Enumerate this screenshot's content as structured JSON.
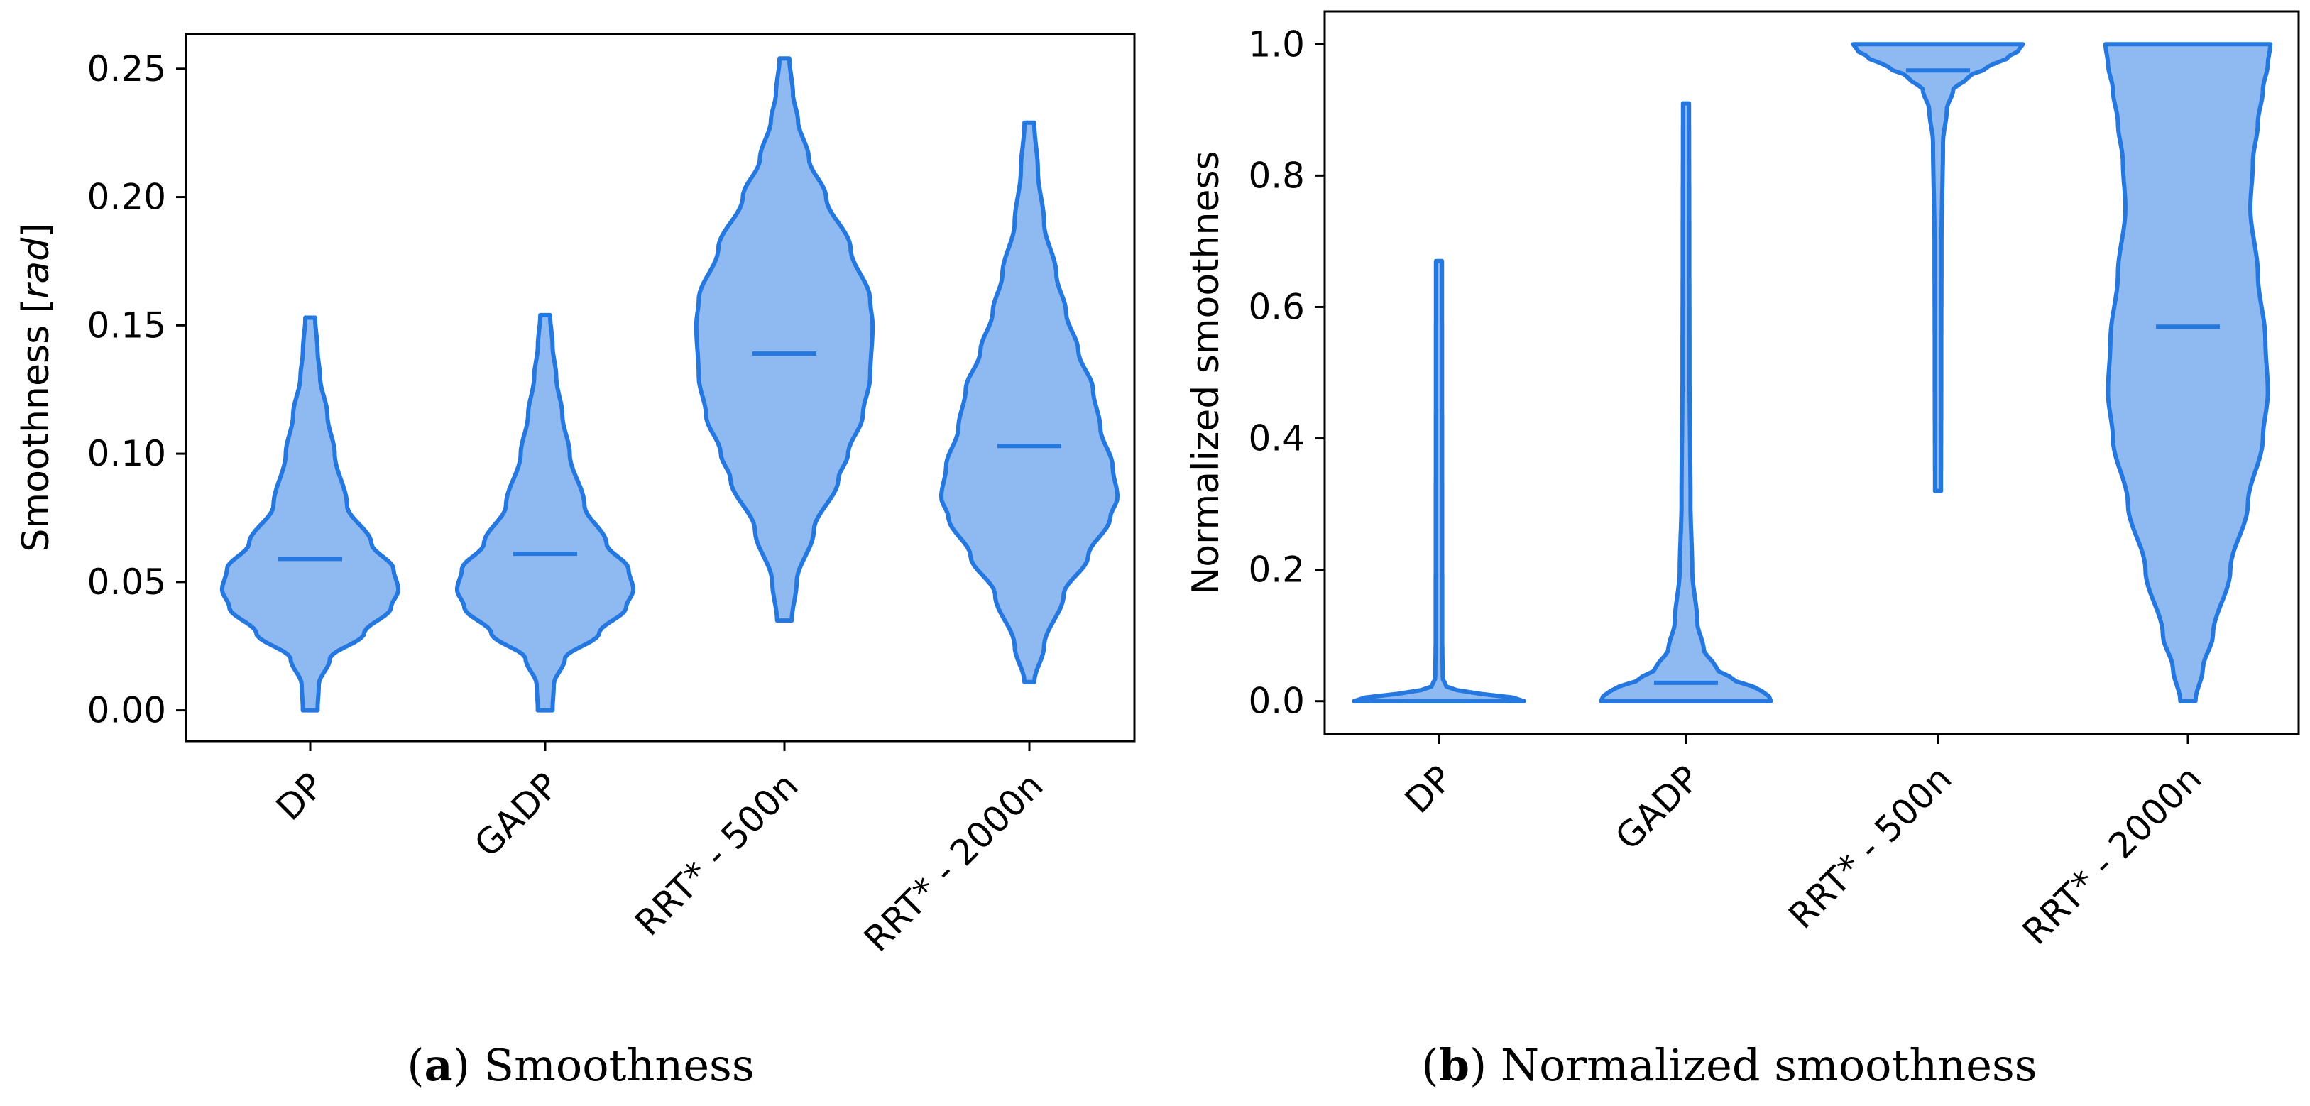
{
  "colors": {
    "fill": "#8fbaf1",
    "stroke": "#2478e0",
    "axis": "#000000"
  },
  "chart_data": [
    {
      "type": "violin",
      "panel_label": "a",
      "caption": "Smoothness",
      "ylabel_prefix": "Smoothness [",
      "ylabel_unit": "rad",
      "ylabel_suffix": "]",
      "ylim": [
        -0.012,
        0.2635
      ],
      "yticks": [
        0.0,
        0.05,
        0.1,
        0.15,
        0.2,
        0.25
      ],
      "ytick_labels": [
        "0.00",
        "0.05",
        "0.10",
        "0.15",
        "0.20",
        "0.25"
      ],
      "categories": [
        "DP",
        "GADP",
        "RRT* - 500n",
        "RRT* - 2000n"
      ],
      "grid": false,
      "series": [
        {
          "category": "DP",
          "min": 0.0,
          "max": 0.153,
          "median": 0.059,
          "max_half_width": 0.36,
          "profile": [
            [
              0.0,
              0.03
            ],
            [
              0.01,
              0.035
            ],
            [
              0.02,
              0.08
            ],
            [
              0.03,
              0.22
            ],
            [
              0.04,
              0.33
            ],
            [
              0.047,
              0.36
            ],
            [
              0.055,
              0.34
            ],
            [
              0.065,
              0.25
            ],
            [
              0.08,
              0.15
            ],
            [
              0.1,
              0.1
            ],
            [
              0.115,
              0.07
            ],
            [
              0.13,
              0.04
            ],
            [
              0.14,
              0.03
            ],
            [
              0.153,
              0.02
            ]
          ]
        },
        {
          "category": "GADP",
          "min": 0.0,
          "max": 0.154,
          "median": 0.061,
          "max_half_width": 0.36,
          "profile": [
            [
              0.0,
              0.03
            ],
            [
              0.01,
              0.035
            ],
            [
              0.02,
              0.08
            ],
            [
              0.03,
              0.22
            ],
            [
              0.04,
              0.33
            ],
            [
              0.047,
              0.36
            ],
            [
              0.055,
              0.34
            ],
            [
              0.065,
              0.25
            ],
            [
              0.08,
              0.16
            ],
            [
              0.1,
              0.1
            ],
            [
              0.115,
              0.07
            ],
            [
              0.13,
              0.045
            ],
            [
              0.142,
              0.03
            ],
            [
              0.154,
              0.02
            ]
          ]
        },
        {
          "category": "RRT* - 500n",
          "min": 0.035,
          "max": 0.254,
          "median": 0.139,
          "max_half_width": 0.36,
          "profile": [
            [
              0.035,
              0.03
            ],
            [
              0.05,
              0.05
            ],
            [
              0.07,
              0.12
            ],
            [
              0.09,
              0.22
            ],
            [
              0.1,
              0.26
            ],
            [
              0.115,
              0.32
            ],
            [
              0.13,
              0.35
            ],
            [
              0.15,
              0.36
            ],
            [
              0.16,
              0.35
            ],
            [
              0.18,
              0.27
            ],
            [
              0.2,
              0.17
            ],
            [
              0.215,
              0.1
            ],
            [
              0.23,
              0.055
            ],
            [
              0.24,
              0.035
            ],
            [
              0.254,
              0.02
            ]
          ]
        },
        {
          "category": "RRT* - 2000n",
          "min": 0.011,
          "max": 0.229,
          "median": 0.103,
          "max_half_width": 0.36,
          "profile": [
            [
              0.011,
              0.02
            ],
            [
              0.025,
              0.06
            ],
            [
              0.045,
              0.14
            ],
            [
              0.06,
              0.24
            ],
            [
              0.075,
              0.33
            ],
            [
              0.083,
              0.36
            ],
            [
              0.095,
              0.34
            ],
            [
              0.11,
              0.29
            ],
            [
              0.125,
              0.26
            ],
            [
              0.14,
              0.2
            ],
            [
              0.155,
              0.15
            ],
            [
              0.17,
              0.11
            ],
            [
              0.19,
              0.06
            ],
            [
              0.21,
              0.035
            ],
            [
              0.229,
              0.02
            ]
          ]
        }
      ]
    },
    {
      "type": "violin",
      "panel_label": "b",
      "caption": "Normalized smoothness",
      "ylabel": "Normalized smoothness",
      "ylim": [
        -0.05,
        1.05
      ],
      "yticks": [
        0.0,
        0.2,
        0.4,
        0.6,
        0.8,
        1.0
      ],
      "ytick_labels": [
        "0.0",
        "0.2",
        "0.4",
        "0.6",
        "0.8",
        "1.0"
      ],
      "categories": [
        "DP",
        "GADP",
        "RRT* - 500n",
        "RRT* - 2000n"
      ],
      "grid": false,
      "series": [
        {
          "category": "DP",
          "min": 0.0,
          "max": 0.67,
          "median": 0.0,
          "max_half_width": 0.34,
          "profile": [
            [
              0.0,
              0.34
            ],
            [
              0.005,
              0.3
            ],
            [
              0.01,
              0.18
            ],
            [
              0.015,
              0.08
            ],
            [
              0.022,
              0.03
            ],
            [
              0.035,
              0.015
            ],
            [
              0.1,
              0.013
            ],
            [
              0.67,
              0.012
            ]
          ]
        },
        {
          "category": "GADP",
          "min": 0.0,
          "max": 0.91,
          "median": 0.028,
          "max_half_width": 0.34,
          "profile": [
            [
              0.0,
              0.34
            ],
            [
              0.01,
              0.33
            ],
            [
              0.02,
              0.28
            ],
            [
              0.03,
              0.2
            ],
            [
              0.05,
              0.12
            ],
            [
              0.08,
              0.07
            ],
            [
              0.12,
              0.045
            ],
            [
              0.2,
              0.025
            ],
            [
              0.3,
              0.018
            ],
            [
              0.5,
              0.014
            ],
            [
              0.7,
              0.013
            ],
            [
              0.91,
              0.012
            ]
          ]
        },
        {
          "category": "RRT* - 500n",
          "min": 0.32,
          "max": 1.0,
          "median": 0.96,
          "max_half_width": 0.34,
          "profile": [
            [
              0.32,
              0.012
            ],
            [
              0.5,
              0.013
            ],
            [
              0.7,
              0.014
            ],
            [
              0.85,
              0.02
            ],
            [
              0.9,
              0.035
            ],
            [
              0.93,
              0.06
            ],
            [
              0.95,
              0.12
            ],
            [
              0.965,
              0.2
            ],
            [
              0.98,
              0.28
            ],
            [
              0.99,
              0.32
            ],
            [
              1.0,
              0.34
            ]
          ]
        },
        {
          "category": "RRT* - 2000n",
          "min": 0.0,
          "max": 1.0,
          "median": 0.57,
          "max_half_width": 0.34,
          "profile": [
            [
              0.0,
              0.03
            ],
            [
              0.05,
              0.06
            ],
            [
              0.1,
              0.1
            ],
            [
              0.2,
              0.17
            ],
            [
              0.3,
              0.24
            ],
            [
              0.4,
              0.3
            ],
            [
              0.47,
              0.32
            ],
            [
              0.55,
              0.31
            ],
            [
              0.65,
              0.28
            ],
            [
              0.75,
              0.25
            ],
            [
              0.82,
              0.26
            ],
            [
              0.88,
              0.28
            ],
            [
              0.93,
              0.3
            ],
            [
              0.97,
              0.32
            ],
            [
              1.0,
              0.33
            ]
          ]
        }
      ]
    }
  ]
}
